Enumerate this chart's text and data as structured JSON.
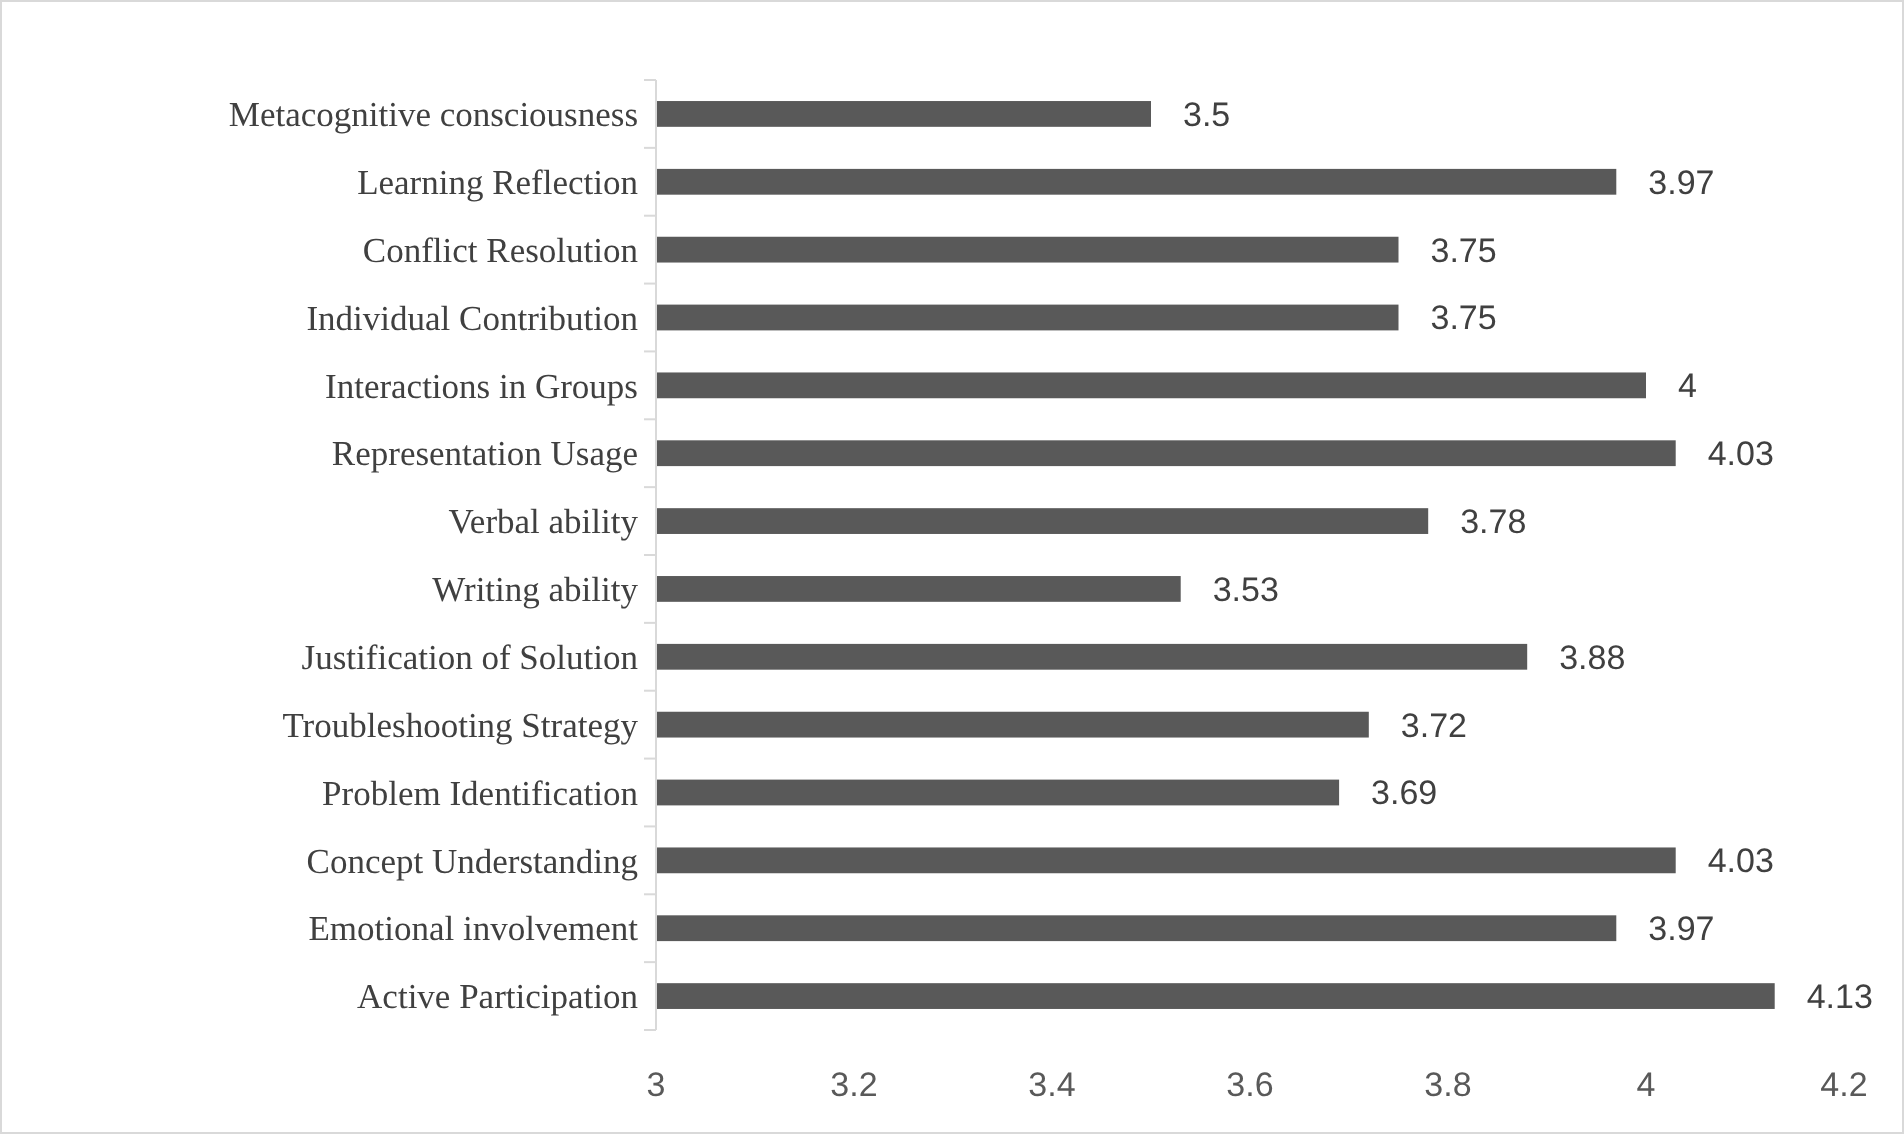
{
  "chart_data": {
    "type": "bar",
    "orientation": "horizontal",
    "categories": [
      "Metacognitive consciousness",
      "Learning Reflection",
      "Conflict Resolution",
      "Individual Contribution",
      "Interactions in Groups",
      "Representation Usage",
      "Verbal ability",
      "Writing ability",
      "Justification of Solution",
      "Troubleshooting Strategy",
      "Problem Identification",
      "Concept Understanding",
      "Emotional involvement",
      "Active Participation"
    ],
    "values": [
      3.5,
      3.97,
      3.75,
      3.75,
      4,
      4.03,
      3.78,
      3.53,
      3.88,
      3.72,
      3.69,
      4.03,
      3.97,
      4.13
    ],
    "color": "#595959",
    "xlim": [
      3,
      4.2
    ],
    "xticks": [
      3,
      3.2,
      3.4,
      3.6,
      3.8,
      4,
      4.2
    ],
    "data_labels": true,
    "grid": false
  }
}
